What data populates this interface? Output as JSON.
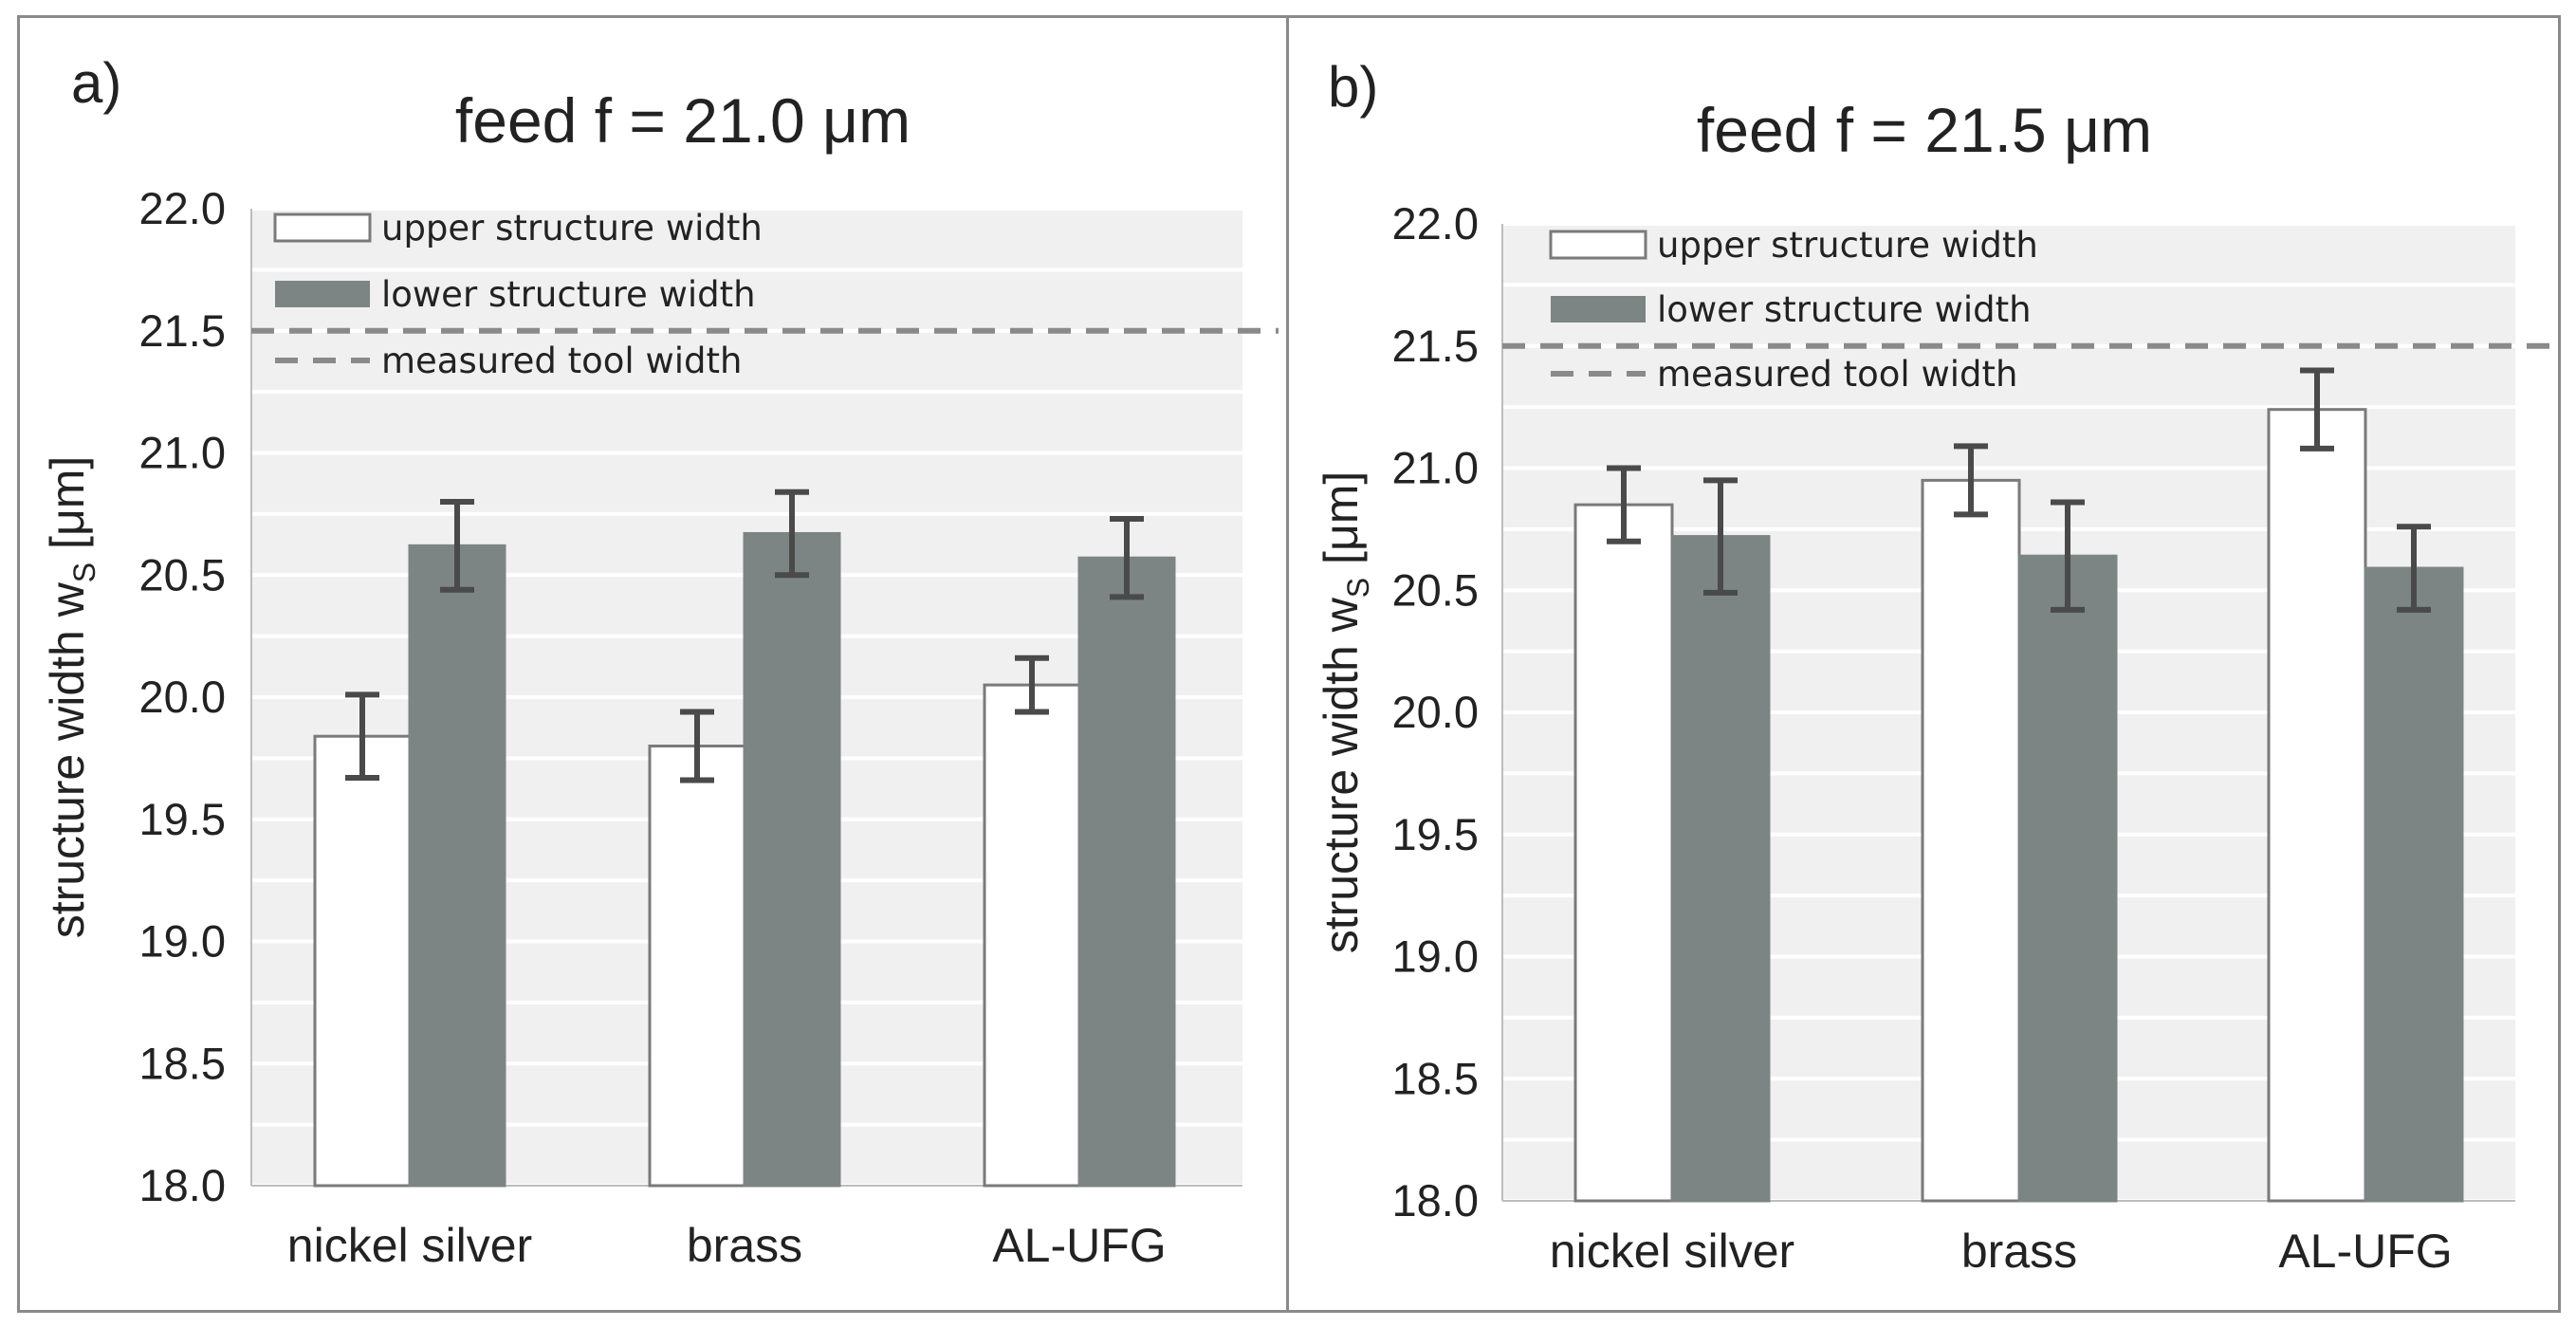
{
  "colors": {
    "plot_bg": "#f0f0f0",
    "grid": "#ffffff",
    "upper_fill": "#ffffff",
    "upper_stroke": "#7a7a7a",
    "lower_fill": "#7c8583",
    "error_bar": "#4a4a4a",
    "dashed_line": "#8a8a8a",
    "text": "#222222"
  },
  "chart_data": [
    {
      "type": "bar",
      "panel_label": "a)",
      "title": "feed f = 21.0 μm",
      "ylabel": "structure width w",
      "ylabel_subscript": "S",
      "ylabel_unit": " [μm]",
      "ylim": [
        18.0,
        22.0
      ],
      "yticks": [
        "18.0",
        "18.5",
        "19.0",
        "19.5",
        "20.0",
        "20.5",
        "21.0",
        "21.5",
        "22.0"
      ],
      "grid": true,
      "categories": [
        "nickel silver",
        "brass",
        "AL-UFG"
      ],
      "series": [
        {
          "name": "upper structure width",
          "values": [
            19.84,
            19.8,
            20.05
          ],
          "errors": [
            0.17,
            0.14,
            0.11
          ]
        },
        {
          "name": "lower structure width",
          "values": [
            20.62,
            20.67,
            20.57
          ],
          "errors": [
            0.18,
            0.17,
            0.16
          ]
        }
      ],
      "reference_line": {
        "name": "measured tool width",
        "value": 21.5
      },
      "legend": {
        "position": "top-left",
        "items": [
          "upper structure width",
          "lower structure width",
          "measured tool width"
        ]
      }
    },
    {
      "type": "bar",
      "panel_label": "b)",
      "title": "feed f = 21.5 μm",
      "ylabel": "structure width w",
      "ylabel_subscript": "S",
      "ylabel_unit": " [μm]",
      "ylim": [
        18.0,
        22.0
      ],
      "yticks": [
        "18.0",
        "18.5",
        "19.0",
        "19.5",
        "20.0",
        "20.5",
        "21.0",
        "21.5",
        "22.0"
      ],
      "grid": true,
      "categories": [
        "nickel silver",
        "brass",
        "AL-UFG"
      ],
      "series": [
        {
          "name": "upper structure width",
          "values": [
            20.85,
            20.95,
            21.24
          ],
          "errors": [
            0.15,
            0.14,
            0.16
          ]
        },
        {
          "name": "lower structure width",
          "values": [
            20.72,
            20.64,
            20.59
          ],
          "errors": [
            0.23,
            0.22,
            0.17
          ]
        }
      ],
      "reference_line": {
        "name": "measured tool width",
        "value": 21.5
      },
      "legend": {
        "position": "top-left",
        "items": [
          "upper structure width",
          "lower structure width",
          "measured tool width"
        ]
      }
    }
  ]
}
